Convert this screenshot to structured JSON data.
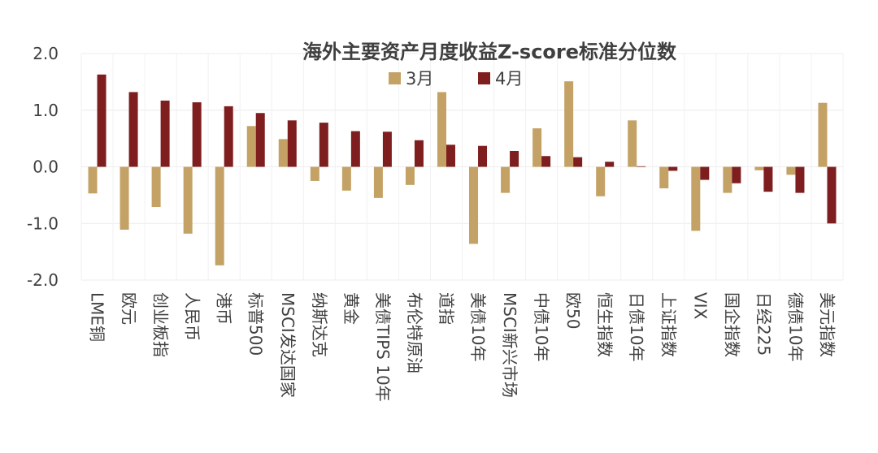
{
  "chart_data": {
    "type": "bar",
    "title": "海外主要资产月度收益Z-score标准分位数",
    "xlabel": "",
    "ylabel": "",
    "ylim": [
      -2.0,
      2.0
    ],
    "yticks": [
      "2.0",
      "1.0",
      "0.0",
      "-1.0",
      "-2.0"
    ],
    "ytick_values": [
      2.0,
      1.0,
      0.0,
      -1.0,
      -2.0
    ],
    "grid": true,
    "legend_position": "top-center",
    "categories": [
      "LME铜",
      "欧元",
      "创业板指",
      "人民币",
      "港币",
      "标普500",
      "MSCI发达国家",
      "纳斯达克",
      "黄金",
      "美债TIPS 10年",
      "布伦特原油",
      "道指",
      "美债10年",
      "MSCI新兴市场",
      "中债10年",
      "欧50",
      "恒生指数",
      "日债10年",
      "上证指数",
      "VIX",
      "国企指数",
      "日经225",
      "德债10年",
      "美元指数"
    ],
    "series": [
      {
        "name": "3月",
        "color": "#C4A265",
        "values": [
          -0.47,
          -1.11,
          -0.71,
          -1.18,
          -1.74,
          0.72,
          0.49,
          -0.25,
          -0.42,
          -0.55,
          -0.32,
          1.32,
          -1.36,
          -0.46,
          0.68,
          1.51,
          -0.52,
          0.82,
          -0.38,
          -1.13,
          -0.46,
          -0.06,
          -0.14,
          1.13
        ]
      },
      {
        "name": "4月",
        "color": "#7F1E1E",
        "values": [
          1.63,
          1.32,
          1.17,
          1.14,
          1.07,
          0.95,
          0.82,
          0.78,
          0.63,
          0.62,
          0.47,
          0.39,
          0.37,
          0.28,
          0.19,
          0.17,
          0.09,
          0.01,
          -0.07,
          -0.23,
          -0.29,
          -0.44,
          -0.46,
          -1.0
        ]
      }
    ]
  }
}
